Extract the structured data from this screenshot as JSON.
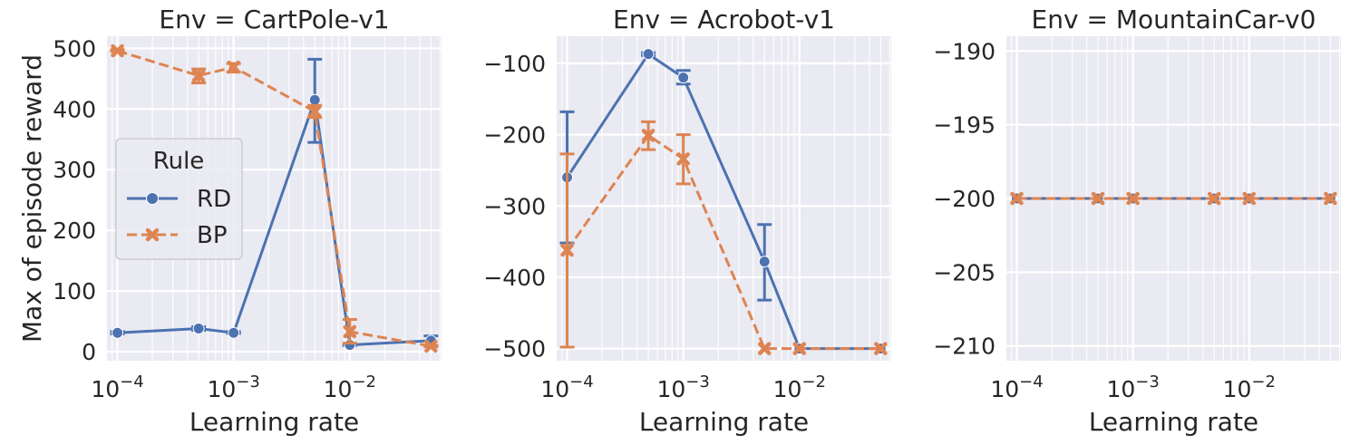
{
  "figure": {
    "ylabel": "Max of episode reward",
    "legend": {
      "title": "Rule",
      "placement": "center-left of first panel",
      "entries": [
        {
          "label": "RD",
          "color": "#4c72b0",
          "marker": "circle",
          "linestyle": "solid"
        },
        {
          "label": "BP",
          "color": "#dd8452",
          "marker": "x",
          "linestyle": "dashed"
        }
      ]
    }
  },
  "chart_data": [
    {
      "type": "line",
      "title": "Env = CartPole-v1",
      "xlabel": "Learning rate",
      "ylabel": "Max of episode reward",
      "xscale": "log",
      "x_ticks": [
        "10^-4",
        "10^-3",
        "10^-2"
      ],
      "y_ticks": [
        "0",
        "100",
        "200",
        "300",
        "400",
        "500"
      ],
      "ylim": [
        -15,
        520
      ],
      "grid": true,
      "series": [
        {
          "name": "RD",
          "color": "#4c72b0",
          "x": [
            0.0001,
            0.0005,
            0.001,
            0.005,
            0.01,
            0.05
          ],
          "y": [
            31,
            38,
            31,
            415,
            11,
            18
          ],
          "err_low": [
            29,
            35,
            30,
            345,
            10,
            10
          ],
          "err_high": [
            33,
            41,
            33,
            482,
            12,
            26
          ]
        },
        {
          "name": "BP",
          "color": "#dd8452",
          "x": [
            0.0001,
            0.0005,
            0.001,
            0.005,
            0.01,
            0.05
          ],
          "y": [
            496,
            455,
            469,
            396,
            33,
            9
          ],
          "err_low": [
            495,
            443,
            461,
            386,
            14,
            8
          ],
          "err_high": [
            498,
            466,
            475,
            406,
            53,
            10
          ]
        }
      ]
    },
    {
      "type": "line",
      "title": "Env = Acrobot-v1",
      "xlabel": "Learning rate",
      "ylabel": "",
      "xscale": "log",
      "x_ticks": [
        "10^-4",
        "10^-3",
        "10^-2"
      ],
      "y_ticks": [
        "−100",
        "−200",
        "−300",
        "−400",
        "−500"
      ],
      "ylim": [
        -517,
        -62
      ],
      "grid": true,
      "series": [
        {
          "name": "RD",
          "color": "#4c72b0",
          "x": [
            0.0001,
            0.0005,
            0.001,
            0.005,
            0.01,
            0.05
          ],
          "y": [
            -260,
            -87,
            -120,
            -378,
            -500,
            -500
          ],
          "err_low": [
            -352,
            -89,
            -129,
            -432,
            -500,
            -500
          ],
          "err_high": [
            -168,
            -85,
            -110,
            -326,
            -500,
            -500
          ]
        },
        {
          "name": "BP",
          "color": "#dd8452",
          "x": [
            0.0001,
            0.0005,
            0.001,
            0.005,
            0.01,
            0.05
          ],
          "y": [
            -362,
            -201,
            -234,
            -500,
            -500,
            -500
          ],
          "err_low": [
            -498,
            -221,
            -269,
            -500,
            -500,
            -500
          ],
          "err_high": [
            -227,
            -182,
            -200,
            -500,
            -500,
            -500
          ]
        }
      ]
    },
    {
      "type": "line",
      "title": "Env = MountainCar-v0",
      "xlabel": "Learning rate",
      "ylabel": "",
      "xscale": "log",
      "x_ticks": [
        "10^-4",
        "10^-3",
        "10^-2"
      ],
      "y_ticks": [
        "−190",
        "−195",
        "−200",
        "−205",
        "−210"
      ],
      "ylim": [
        -211,
        -189
      ],
      "grid": true,
      "series": [
        {
          "name": "RD",
          "color": "#4c72b0",
          "x": [
            0.0001,
            0.0005,
            0.001,
            0.005,
            0.01,
            0.05
          ],
          "y": [
            -200,
            -200,
            -200,
            -200,
            -200,
            -200
          ]
        },
        {
          "name": "BP",
          "color": "#dd8452",
          "x": [
            0.0001,
            0.0005,
            0.001,
            0.005,
            0.01,
            0.05
          ],
          "y": [
            -200,
            -200,
            -200,
            -200,
            -200,
            -200
          ]
        }
      ]
    }
  ]
}
